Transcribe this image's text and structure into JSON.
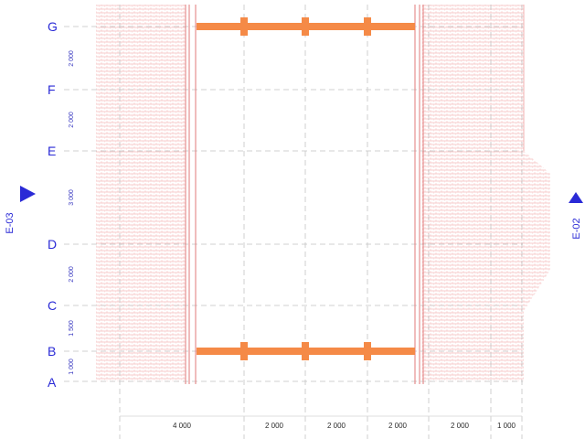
{
  "drawing": {
    "grid_rows": [
      {
        "label": "G"
      },
      {
        "label": "F"
      },
      {
        "label": "E"
      },
      {
        "label": "D"
      },
      {
        "label": "C"
      },
      {
        "label": "B"
      },
      {
        "label": "A"
      }
    ],
    "vertical_dimensions": [
      "2 000",
      "2 000",
      "3 000",
      "2 000",
      "1 500",
      "1 000"
    ],
    "horizontal_dimensions": [
      "4 000",
      "2 000",
      "2 000",
      "2 000",
      "2 000",
      "1 000"
    ],
    "elevation_markers": {
      "left": "E-03",
      "right": "E-02"
    },
    "colors": {
      "grid_label": "#2a2ad6",
      "hatch": "#f2a9a9",
      "beam": "#f58a47",
      "wall_line": "#e07a7a",
      "gridline": "#bdbdbd"
    },
    "icons": {
      "left_marker": "triangle-right-icon",
      "right_marker": "triangle-up-icon"
    }
  }
}
